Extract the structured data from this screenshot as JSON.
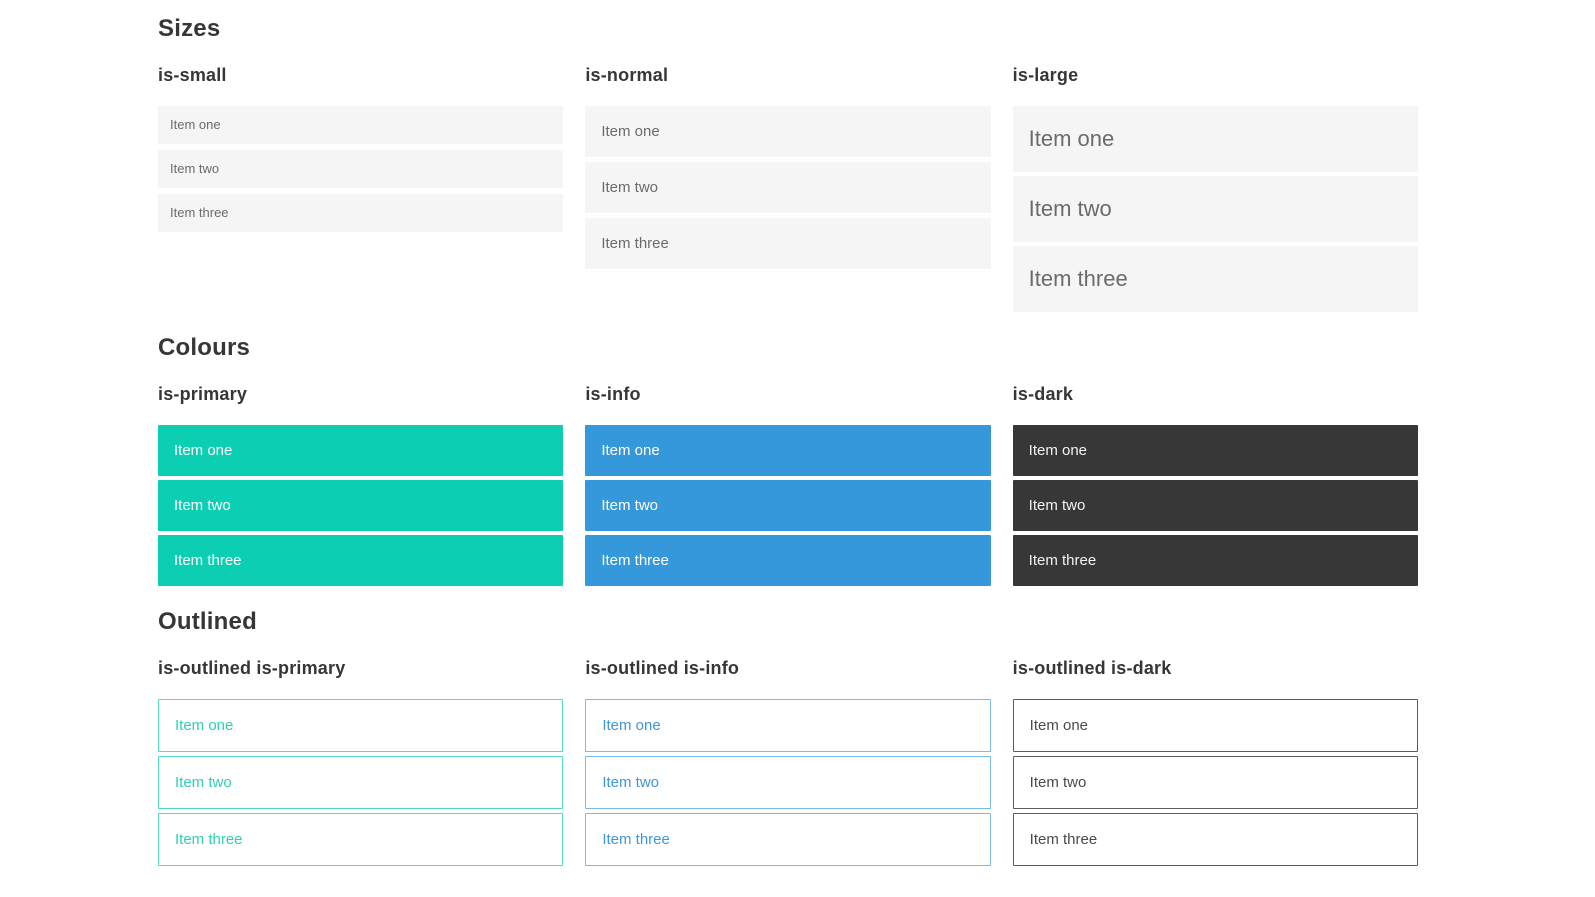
{
  "colors": {
    "primary": "#0cceb2",
    "info": "#3498db",
    "dark": "#373737",
    "item_background_light": "#f5f5f5",
    "heading_text": "#363636",
    "item_text_gray": "#6b6b6b",
    "item_text_white": "#ffffff",
    "outlined_primary_border": "#52dcc6",
    "outlined_info_border": "#79bce9",
    "outlined_dark_border": "#5c5c5c",
    "outlined_dark_text": "#4a4a4a",
    "page_background": "#ffffff"
  },
  "sections": [
    {
      "title": "Sizes",
      "groups": [
        {
          "label": "is-small",
          "variant": "small",
          "items": [
            "Item one",
            "Item two",
            "Item three"
          ]
        },
        {
          "label": "is-normal",
          "variant": "normal",
          "items": [
            "Item one",
            "Item two",
            "Item three"
          ]
        },
        {
          "label": "is-large",
          "variant": "large",
          "items": [
            "Item one",
            "Item two",
            "Item three"
          ]
        }
      ]
    },
    {
      "title": "Colours",
      "groups": [
        {
          "label": "is-primary",
          "variant": "primary",
          "items": [
            "Item one",
            "Item two",
            "Item three"
          ]
        },
        {
          "label": "is-info",
          "variant": "info",
          "items": [
            "Item one",
            "Item two",
            "Item three"
          ]
        },
        {
          "label": "is-dark",
          "variant": "dark",
          "items": [
            "Item one",
            "Item two",
            "Item three"
          ]
        }
      ]
    },
    {
      "title": "Outlined",
      "groups": [
        {
          "label": "is-outlined is-primary",
          "variant": "outlined-primary",
          "items": [
            "Item one",
            "Item two",
            "Item three"
          ]
        },
        {
          "label": "is-outlined is-info",
          "variant": "outlined-info",
          "items": [
            "Item one",
            "Item two",
            "Item three"
          ]
        },
        {
          "label": "is-outlined is-dark",
          "variant": "outlined-dark",
          "items": [
            "Item one",
            "Item two",
            "Item three"
          ]
        }
      ]
    }
  ]
}
